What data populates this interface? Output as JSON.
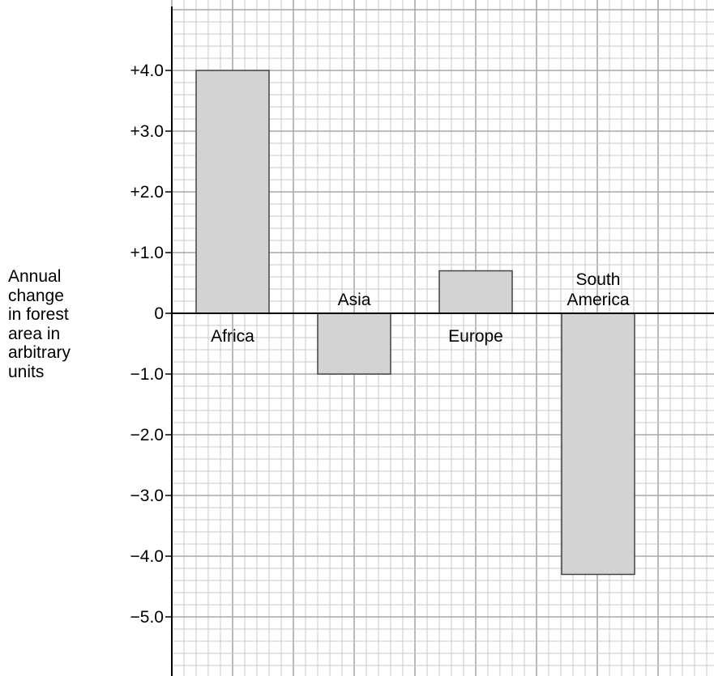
{
  "chart_data": {
    "type": "bar",
    "categories": [
      "Africa",
      "Asia",
      "Europe",
      "South America"
    ],
    "category_label_lines": [
      [
        "Africa"
      ],
      [
        "Asia"
      ],
      [
        "Europe"
      ],
      [
        "South",
        "America"
      ]
    ],
    "values": [
      4.0,
      -1.0,
      0.7,
      -4.3
    ],
    "ylabel_lines": [
      "Annual",
      "change",
      "in forest",
      "area in",
      "arbitrary",
      "units"
    ],
    "ylim": [
      -5.8,
      5.0
    ],
    "yticks": [
      4,
      3,
      2,
      1,
      0,
      -1,
      -2,
      -3,
      -4,
      -5
    ],
    "ytick_labels": [
      "+4.0",
      "+3.0",
      "+2.0",
      "+1.0",
      "0",
      "−1.0",
      "−2.0",
      "−3.0",
      "−4.0",
      "−5.0"
    ],
    "grid": true,
    "colors": {
      "bar_fill": "#d3d3d3",
      "bar_stroke": "#444444",
      "grid_minor": "#c8c8c8",
      "grid_major": "#a8a8a8"
    }
  }
}
